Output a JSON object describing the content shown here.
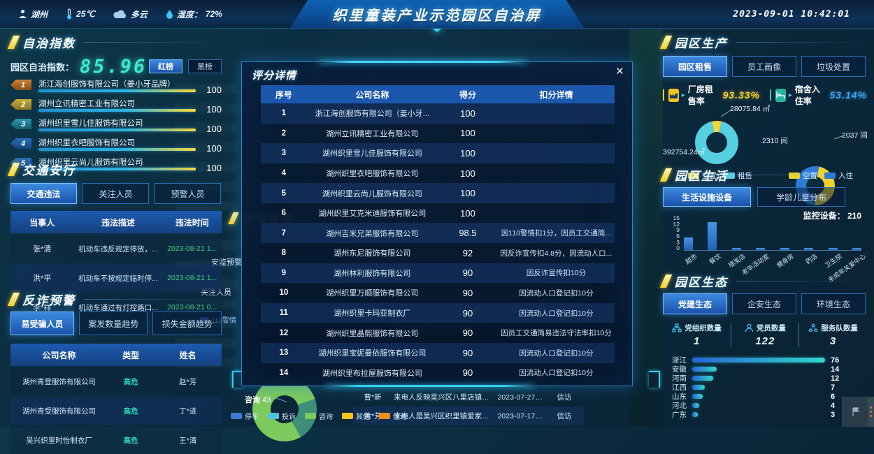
{
  "header": {
    "city": "湖州",
    "temperature": "25℃",
    "weather": "多云",
    "humidity_label": "湿度：",
    "humidity_value": "72%",
    "title": "织里童装产业示范园区自治屏",
    "datetime": "2023-09-01 10:42:01"
  },
  "autonomy": {
    "title": "自治指数",
    "index_label": "园区自治指数：",
    "index_value": "85.96",
    "red_button": "红榜",
    "black_button": "黑榜",
    "ranking": [
      {
        "rank": "1",
        "name": "浙江海创服饰有限公司（姜小牙品牌）",
        "score": "100"
      },
      {
        "rank": "2",
        "name": "湖州立讯精密工业有限公司",
        "score": "100"
      },
      {
        "rank": "3",
        "name": "湖州织里雪儿佳服饰有限公司",
        "score": "100"
      },
      {
        "rank": "4",
        "name": "湖州织里衣吧服饰有限公司",
        "score": "100"
      },
      {
        "rank": "5",
        "name": "湖州织里云尚儿服饰有限公司",
        "score": "100"
      }
    ]
  },
  "traffic": {
    "title": "交通安行",
    "tabs": [
      "交通违法",
      "关注人员",
      "预警人员"
    ],
    "columns": [
      "当事人",
      "违法描述",
      "违法时间"
    ],
    "rows": [
      [
        "张*清",
        "机动车违反规定停放，...",
        "2023-08-21 1..."
      ],
      [
        "洪*平",
        "机动车不按规定临时停...",
        "2023-08-21 1..."
      ],
      [
        "李*祥",
        "机动车通过有灯控路口...",
        "2023-08-21 0..."
      ]
    ]
  },
  "fraud": {
    "title": "反诈预警",
    "tabs": [
      "易受骗人员",
      "案发数量趋势",
      "损失金额趋势"
    ],
    "columns": [
      "公司名称",
      "类型",
      "姓名"
    ],
    "rows": [
      [
        "湖州青登服饰有限公司",
        "高危",
        "赵*芳"
      ],
      [
        "湖州青受服饰有限公司",
        "高危",
        "丁*进"
      ],
      [
        "吴兴织里时怡制衣厂",
        "高危",
        "王*清"
      ]
    ]
  },
  "modal": {
    "title": "评分详情",
    "close_label": "×",
    "columns": [
      "序号",
      "公司名称",
      "得分",
      "扣分详情"
    ],
    "rows": [
      {
        "no": "1",
        "name": "浙江海创服饰有限公司（姜小牙...",
        "score": "100",
        "note": ""
      },
      {
        "no": "2",
        "name": "湖州立讯精密工业有限公司",
        "score": "100",
        "note": ""
      },
      {
        "no": "3",
        "name": "湖州织里雪儿佳服饰有限公司",
        "score": "100",
        "note": ""
      },
      {
        "no": "4",
        "name": "湖州织里衣吧服饰有限公司",
        "score": "100",
        "note": ""
      },
      {
        "no": "5",
        "name": "湖州织里云尚儿服饰有限公司",
        "score": "100",
        "note": ""
      },
      {
        "no": "6",
        "name": "湖州织里艾克米迪服饰有限公司",
        "score": "100",
        "note": ""
      },
      {
        "no": "7",
        "name": "湖州吉米兄弟服饰有限公司",
        "score": "98.5",
        "note": "因110警情扣1分，因员工交通简..."
      },
      {
        "no": "8",
        "name": "湖州东尼服饰有限公司",
        "score": "92",
        "note": "因反诈宣传扣4.8分，因流动人口..."
      },
      {
        "no": "9",
        "name": "湖州林利服饰有限公司",
        "score": "90",
        "note": "因反诈宣传扣10分"
      },
      {
        "no": "10",
        "name": "湖州织里万顺服饰有限公司",
        "score": "90",
        "note": "因流动人口登记扣10分"
      },
      {
        "no": "11",
        "name": "湖州织里卡玛亚制衣厂",
        "score": "90",
        "note": "因流动人口登记扣10分"
      },
      {
        "no": "12",
        "name": "湖州织里晶熙服饰有限公司",
        "score": "90",
        "note": "因员工交通简易违法守法率扣10分"
      },
      {
        "no": "13",
        "name": "湖州织里宝妮曼依服饰有限公司",
        "score": "90",
        "note": "因流动人口登记扣10分"
      },
      {
        "no": "14",
        "name": "湖州织里布拉屋服饰有限公司",
        "score": "90",
        "note": "因流动人口登记扣10分"
      }
    ]
  },
  "production": {
    "title": "园区生产",
    "tabs": [
      "园区租售",
      "员工画像",
      "垃圾处置"
    ],
    "stat_factory": {
      "label": "厂房租售率",
      "value": "93.33%"
    },
    "stat_dorm": {
      "label": "宿舍入住率",
      "value": "53.14%"
    },
    "donut_factory": {
      "type": "pie",
      "callout_top": "28075.84 ㎡",
      "callout_bottom": "392754.24㎡",
      "values": [
        28075.84,
        392754.24
      ],
      "colors": [
        "#f7d42e",
        "#56cfe1"
      ],
      "from": 348,
      "legend": [
        {
          "label": "空置",
          "color": "#f7d42e"
        },
        {
          "label": "租售",
          "color": "#56cfe1"
        }
      ]
    },
    "donut_dorm": {
      "type": "pie",
      "callout_left": "2310 间",
      "callout_right": "2037 间",
      "values": [
        2310,
        2037
      ],
      "colors": [
        "#2e7bd6",
        "#edd22e"
      ],
      "from": 180,
      "legend": [
        {
          "label": "空置",
          "color": "#edd22e"
        },
        {
          "label": "入住",
          "color": "#2e7bd6"
        }
      ]
    }
  },
  "life": {
    "title": "园区生活",
    "tabs": [
      "生活设施设备",
      "学龄儿童分布"
    ],
    "monitor_label": "监控设备：",
    "monitor_value": "210",
    "chart": {
      "type": "bar",
      "categories": [
        "超市",
        "餐饮",
        "理发店",
        "老年活动室",
        "健身房",
        "药店",
        "卫生院",
        "未成年关爱中心"
      ],
      "values": [
        6,
        13,
        1,
        1,
        1,
        1,
        1,
        1
      ],
      "yticks": [
        "15",
        "12",
        "9",
        "6",
        "3",
        "0"
      ],
      "ymax": 15
    }
  },
  "ecology": {
    "title": "园区生态",
    "tabs": [
      "党建生态",
      "企安生态",
      "环境生态"
    ],
    "stats": [
      {
        "label": "党组织数量",
        "value": "1"
      },
      {
        "label": "党员数量",
        "value": "122"
      },
      {
        "label": "服务队数量",
        "value": "3"
      }
    ],
    "chart": {
      "type": "hbar",
      "max": 76,
      "bars": [
        {
          "label": "浙江",
          "value": 76
        },
        {
          "label": "安徽",
          "value": 14
        },
        {
          "label": "河南",
          "value": 12
        },
        {
          "label": "江西",
          "value": 7
        },
        {
          "label": "山东",
          "value": 6
        },
        {
          "label": "河北",
          "value": 4
        },
        {
          "label": "广东",
          "value": 3
        }
      ]
    }
  },
  "fragments": {
    "warning_section": "异常预警",
    "safety_label": "安监预警",
    "follow_label": "关注人员",
    "legend_110": "110警情"
  },
  "bottom": {
    "consult_label": "咨询",
    "consult_value": "43",
    "donut": {
      "type": "pie",
      "values": [
        78,
        22
      ],
      "colors": [
        "#7cc95e",
        "#3d8f7a"
      ],
      "from": 150
    },
    "legend": [
      {
        "label": "停车",
        "color": "#3a7bd5"
      },
      {
        "label": "投诉",
        "color": "#4fc3d9"
      },
      {
        "label": "咨询",
        "color": "#79c95e"
      },
      {
        "label": "其他",
        "color": "#f2c618"
      },
      {
        "label": "信访",
        "color": "#f08c1e"
      }
    ],
    "rows": [
      [
        "曹*新",
        "来电人反映吴兴区八里店镇吴兴...",
        "2023-07-27 07:...",
        "信访"
      ],
      [
        "黄*芳",
        "来电人是吴兴区织里镇爱家华府...",
        "2023-07-17 09:...",
        "信访"
      ]
    ]
  }
}
